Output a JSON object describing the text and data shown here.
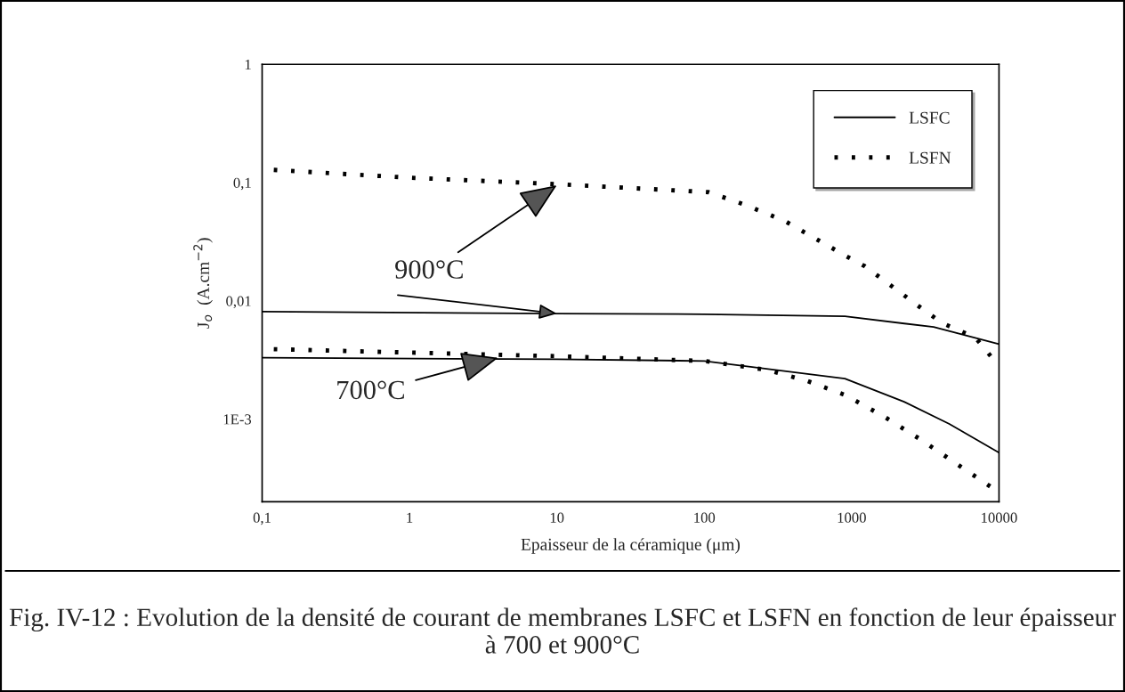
{
  "chart_data": {
    "type": "line",
    "xlabel": "Epaisseur de la céramique (μm)",
    "ylabel": "J$_{o}$  (A.cm$^{−2}$)",
    "log": "xy",
    "grid": false,
    "legend": "top right",
    "xlim": [
      0.1,
      10000
    ],
    "xticks": [
      {
        "value": 0.1,
        "label": "0,1"
      },
      1,
      10,
      100,
      1000,
      10000
    ],
    "ylim": [
      0.0002,
      1
    ],
    "yticks": [
      {
        "value": 0.001,
        "label": "1E-3"
      },
      {
        "value": 0.01,
        "label": "0,01"
      },
      {
        "value": 0.1,
        "label": "0,1"
      },
      1
    ],
    "series": [
      {
        "name": "LSFN",
        "color": "#000000",
        "line_style": "dotted",
        "x": [
          0.12,
          1,
          10,
          107,
          195,
          355,
          910,
          1230,
          3000,
          4100,
          6900,
          10000
        ],
        "values": [
          0.128,
          0.11,
          0.097,
          0.083,
          0.064,
          0.047,
          0.024,
          0.0196,
          0.0086,
          0.0065,
          0.0049,
          0.0028
        ]
      },
      {
        "name": "LSFC",
        "color": "#000000",
        "line_style": "solid",
        "x": [
          0.1,
          10,
          100,
          900,
          3600,
          10000
        ],
        "values": [
          0.0081,
          0.0078,
          0.0077,
          0.0074,
          0.006,
          0.0043
        ]
      },
      {
        "color": "#000000",
        "line_style": "dotted",
        "x": [
          0.12,
          10,
          100,
          270,
          500,
          900,
          1660,
          3000,
          5600,
          10000
        ],
        "values": [
          0.0039,
          0.0034,
          0.0031,
          0.0026,
          0.0021,
          0.0016,
          0.00105,
          0.00066,
          0.00039,
          0.00024
        ]
      },
      {
        "color": "#000000",
        "line_style": "solid",
        "x": [
          0.1,
          10,
          100,
          900,
          2270,
          4600,
          10000
        ],
        "values": [
          0.0033,
          0.0032,
          0.0031,
          0.0022,
          0.0014,
          0.00091,
          0.00052
        ]
      }
    ],
    "annotations": [
      {
        "text": "900°C",
        "x": 10,
        "y": 0.095
      },
      {
        "text": "700°C",
        "x": 4,
        "y": 0.0033
      },
      "Fig. IV-12 : Evolution de la densité de courant de membranes LSFC et LSFN en fonction de leur épaisseur à 700 et 900°C"
    ]
  }
}
